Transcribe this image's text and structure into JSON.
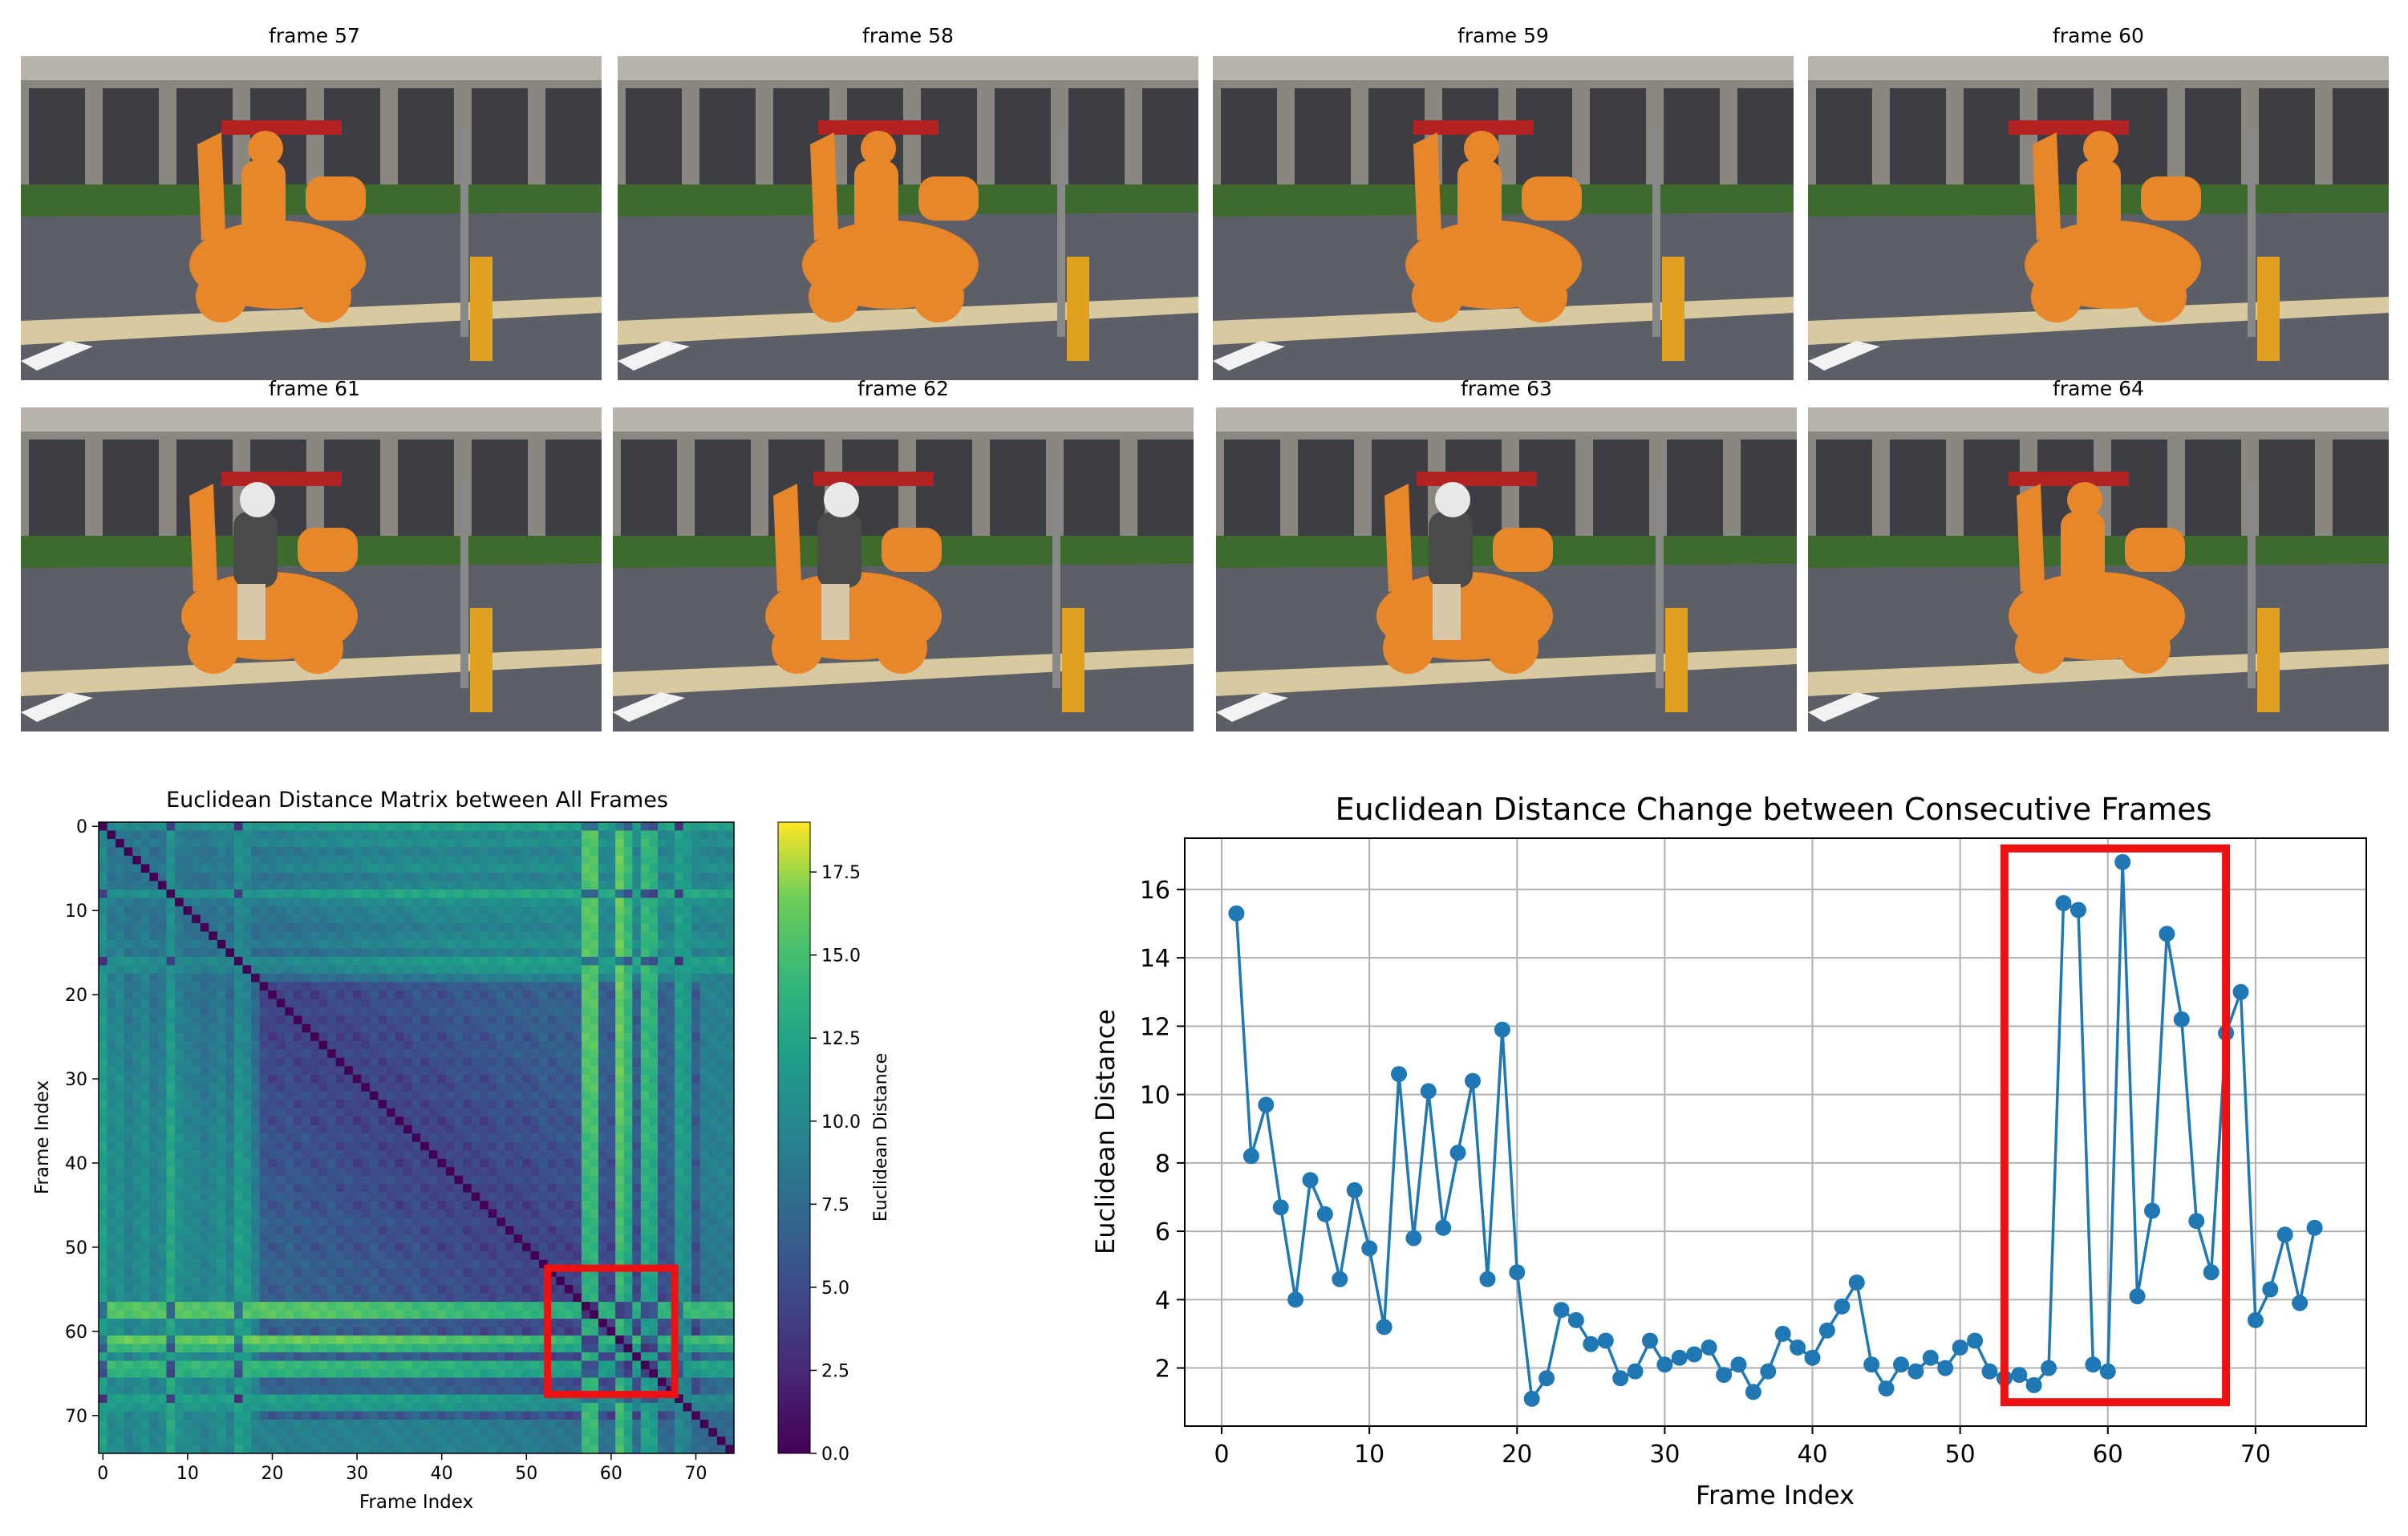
{
  "frames": [
    {
      "title": "frame 57",
      "mask": "scooter-and-rider-mask"
    },
    {
      "title": "frame 58",
      "mask": "scooter-and-rider-mask"
    },
    {
      "title": "frame 59",
      "mask": "scooter-and-rider-mask"
    },
    {
      "title": "frame 60",
      "mask": "scooter-and-rider-mask"
    },
    {
      "title": "frame 61",
      "mask": "scooter-only-mask"
    },
    {
      "title": "frame 62",
      "mask": "scooter-only-mask"
    },
    {
      "title": "frame 63",
      "mask": "scooter-only-mask"
    },
    {
      "title": "frame 64",
      "mask": "scooter-and-rider-mask"
    }
  ],
  "colors": {
    "mask": "#e8862a",
    "highlight_box": "#ee1111",
    "line": "#1f77b4",
    "grid": "#b0b0b0"
  },
  "chart_data": [
    {
      "type": "heatmap",
      "title": "Euclidean Distance Matrix between All Frames",
      "xlabel": "Frame Index",
      "ylabel": "Frame Index",
      "size": 75,
      "x_ticks": [
        0,
        10,
        20,
        30,
        40,
        50,
        60,
        70
      ],
      "y_ticks": [
        0,
        10,
        20,
        30,
        40,
        50,
        60,
        70
      ],
      "colorbar": {
        "label": "Euclidean Distance",
        "colormap": "viridis",
        "range": [
          0,
          19
        ],
        "ticks": [
          "0.0",
          "2.5",
          "5.0",
          "7.5",
          "10.0",
          "12.5",
          "15.0",
          "17.5"
        ]
      },
      "highlight_box": {
        "from_index": 53,
        "to_index": 68
      },
      "values_note": "",
      "anomalous_frames": [
        [
          57,
          18
        ],
        [
          58,
          18
        ],
        [
          61,
          19
        ],
        [
          62,
          16
        ],
        [
          64,
          16
        ],
        [
          65,
          15
        ],
        [
          68,
          13
        ],
        [
          69,
          12
        ],
        [
          0,
          13
        ],
        [
          8,
          14
        ],
        [
          9,
          11
        ],
        [
          11,
          10
        ],
        [
          16,
          13
        ],
        [
          17,
          12
        ]
      ]
    },
    {
      "type": "line",
      "title": "Euclidean Distance Change between Consecutive Frames",
      "xlabel": "Frame Index",
      "ylabel": "Euclidean Distance",
      "xlim": [
        -2.5,
        77.5
      ],
      "ylim": [
        0.3,
        17.5
      ],
      "x_ticks": [
        0,
        10,
        20,
        30,
        40,
        50,
        60,
        70
      ],
      "y_ticks": [
        2,
        4,
        6,
        8,
        10,
        12,
        14,
        16
      ],
      "grid": true,
      "x": [
        1,
        2,
        3,
        4,
        5,
        6,
        7,
        8,
        9,
        10,
        11,
        12,
        13,
        14,
        15,
        16,
        17,
        18,
        19,
        20,
        21,
        22,
        23,
        24,
        25,
        26,
        27,
        28,
        29,
        30,
        31,
        32,
        33,
        34,
        35,
        36,
        37,
        38,
        39,
        40,
        41,
        42,
        43,
        44,
        45,
        46,
        47,
        48,
        49,
        50,
        51,
        52,
        53,
        54,
        55,
        56,
        57,
        58,
        59,
        60,
        61,
        62,
        63,
        64,
        65,
        66,
        67,
        68,
        69,
        70,
        71,
        72,
        73,
        74
      ],
      "y": [
        15.3,
        8.2,
        9.7,
        6.7,
        4.0,
        7.5,
        6.5,
        4.6,
        7.2,
        5.5,
        3.2,
        10.6,
        5.8,
        10.1,
        6.1,
        8.3,
        10.4,
        4.6,
        11.9,
        4.8,
        1.1,
        1.7,
        3.7,
        3.4,
        2.7,
        2.8,
        1.7,
        1.9,
        2.8,
        2.1,
        2.3,
        2.4,
        2.6,
        1.8,
        2.1,
        1.3,
        1.9,
        3.0,
        2.6,
        2.3,
        3.1,
        3.8,
        4.5,
        2.1,
        1.4,
        2.1,
        1.9,
        2.3,
        2.0,
        2.6,
        2.8,
        1.9,
        1.7,
        1.8,
        1.5,
        2.0,
        15.6,
        15.4,
        2.1,
        1.9,
        16.8,
        4.1,
        6.6,
        14.7,
        12.2,
        6.3,
        4.8,
        11.8,
        13.0,
        3.4,
        4.3,
        5.9,
        3.9,
        6.1
      ],
      "highlight_box": {
        "x": [
          53,
          68
        ],
        "y": [
          1.0,
          17.2
        ]
      }
    }
  ]
}
